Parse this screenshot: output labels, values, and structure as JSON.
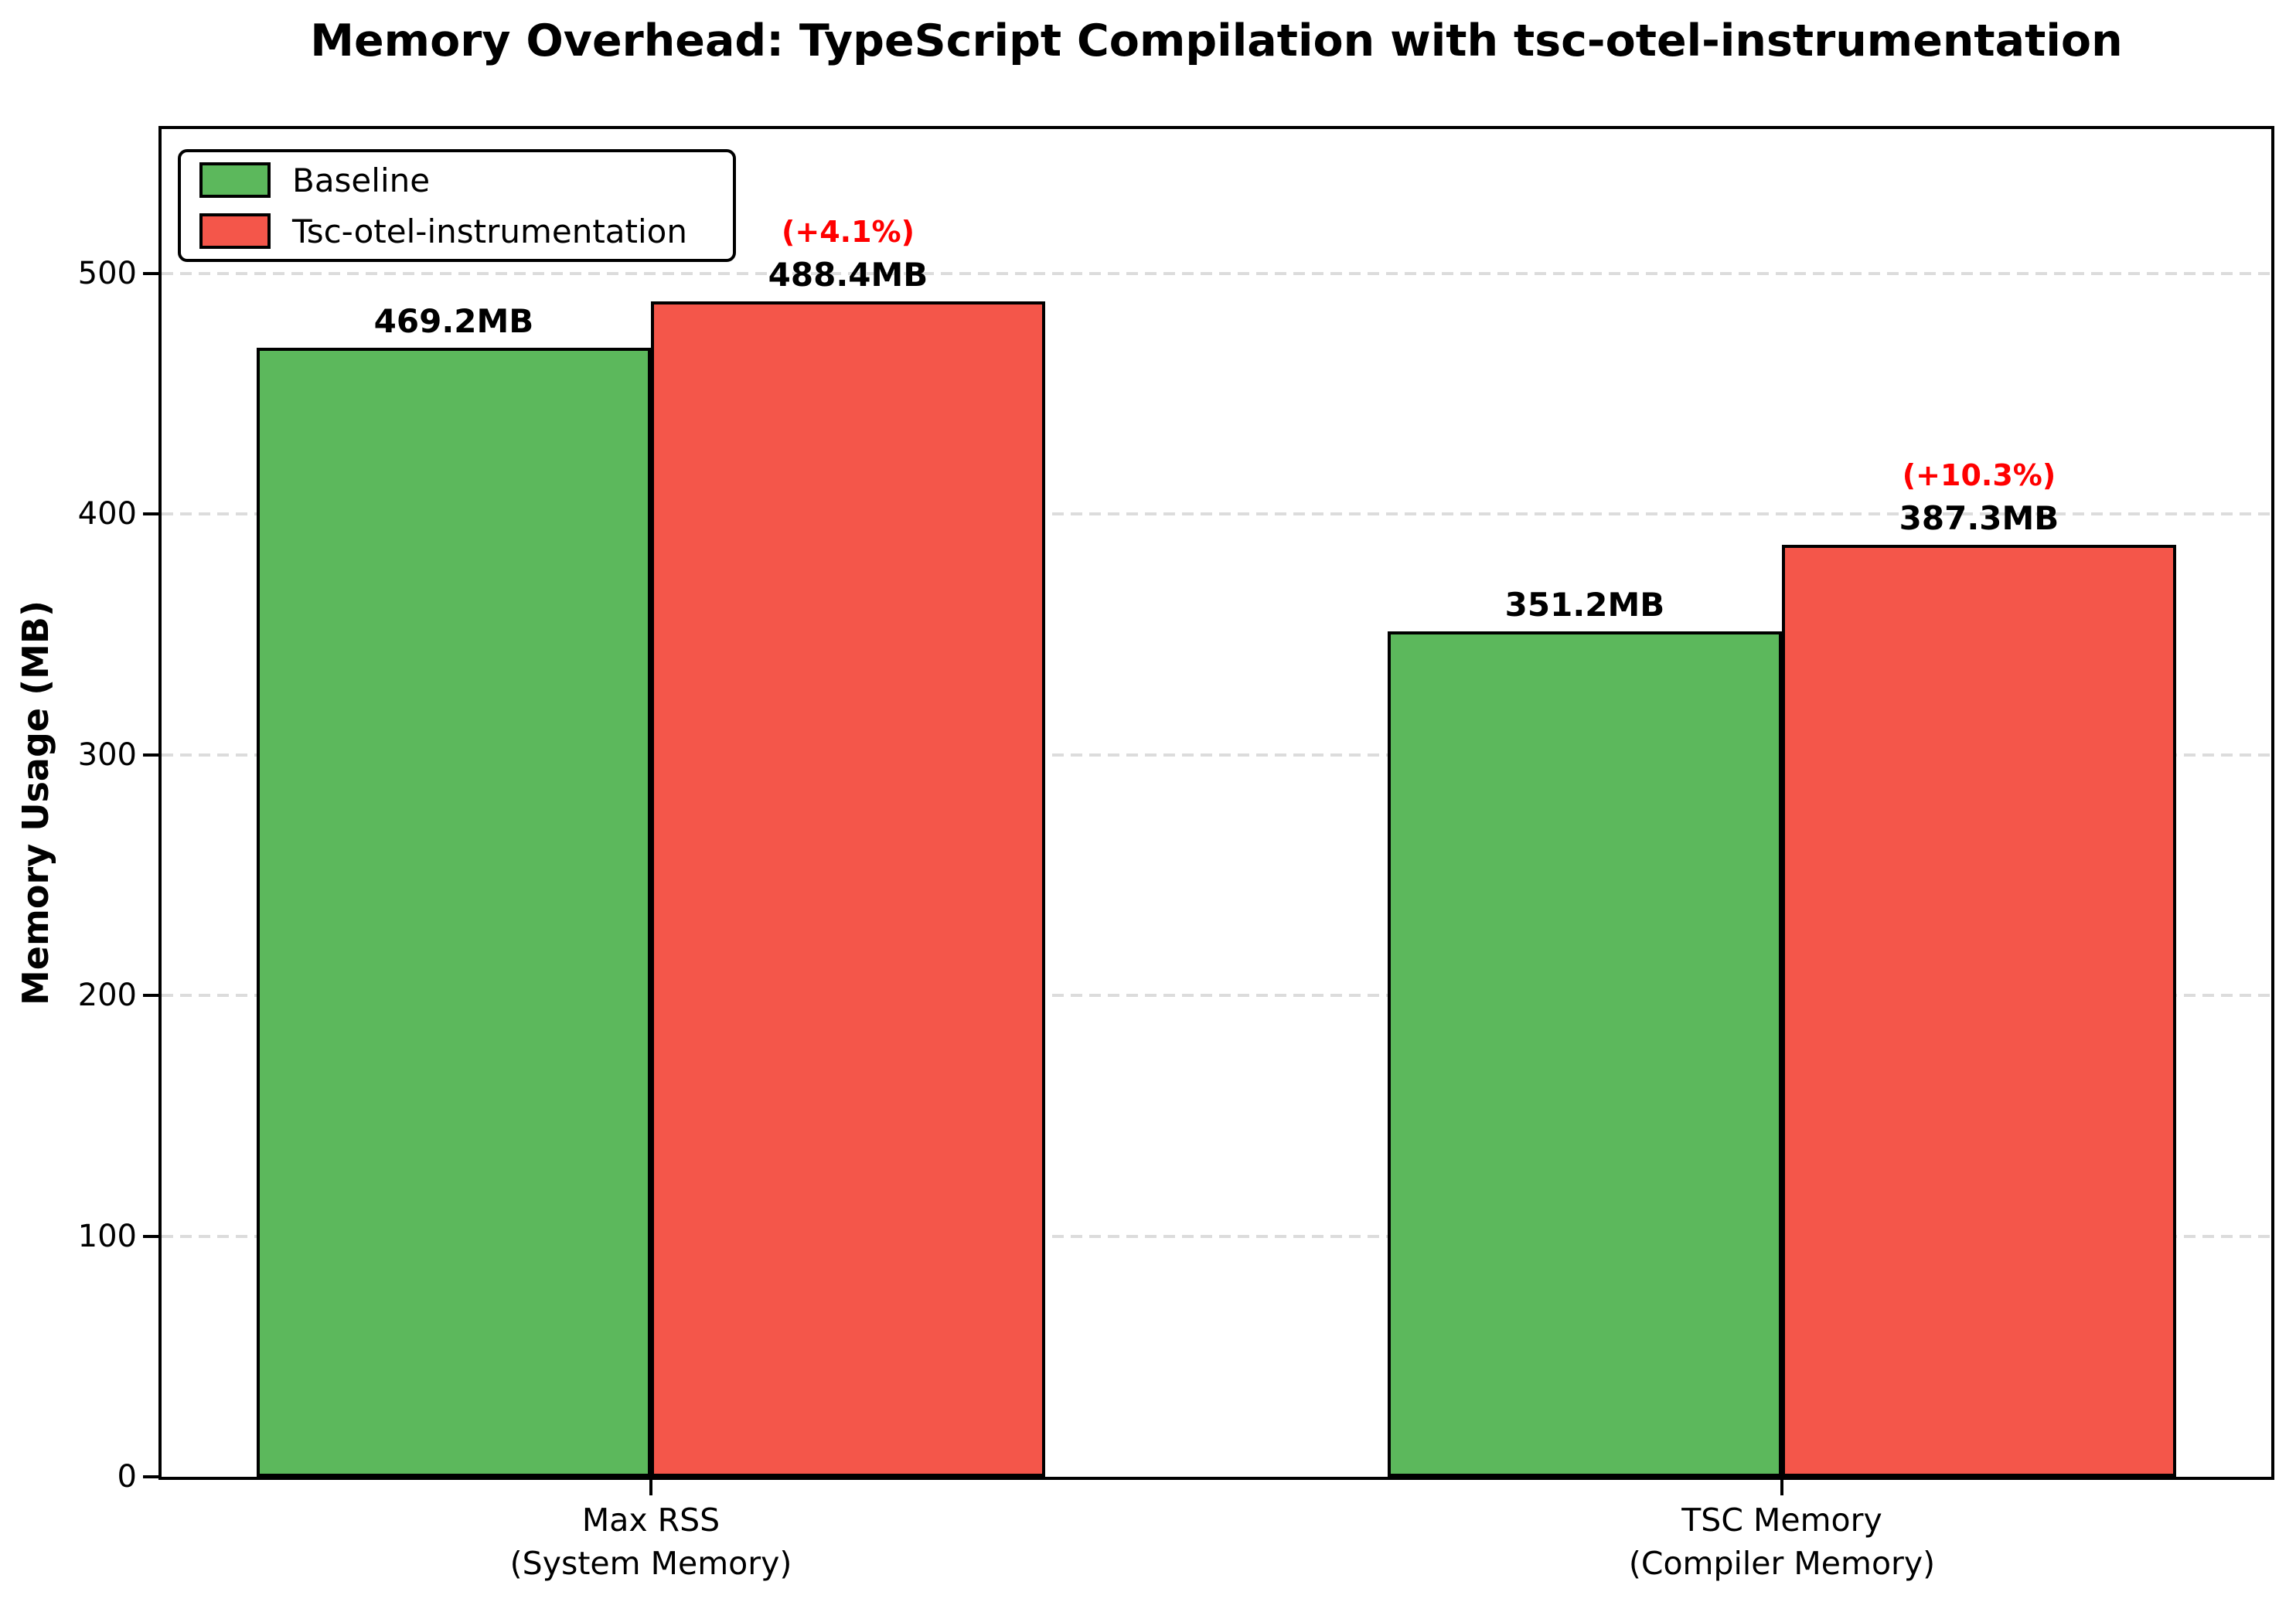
{
  "chart_data": {
    "type": "bar",
    "title": "Memory Overhead: TypeScript Compilation with tsc-otel-instrumentation",
    "ylabel": "Memory Usage (MB)",
    "xlabel": "",
    "ylim": [
      0,
      560
    ],
    "yticks": [
      0,
      100,
      200,
      300,
      400,
      500
    ],
    "grid": "horizontal dashed",
    "gridline_color": "#dcdcdc",
    "legend_position": "upper left",
    "bar_edge_color": "#000000",
    "categories": [
      "Max RSS\n(System Memory)",
      "TSC Memory\n(Compiler Memory)"
    ],
    "series": [
      {
        "name": "Baseline",
        "color": "#5cb85c",
        "values": [
          469.2,
          351.2
        ],
        "bar_labels": [
          "469.2MB",
          "351.2MB"
        ]
      },
      {
        "name": "Tsc-otel-instrumentation",
        "color": "#f4564a",
        "values": [
          488.4,
          387.3
        ],
        "bar_labels": [
          "488.4MB",
          "387.3MB"
        ],
        "pct_labels": [
          "(+4.1%)",
          "(+10.3%)"
        ],
        "pct_label_color": "#ff0000"
      }
    ]
  }
}
